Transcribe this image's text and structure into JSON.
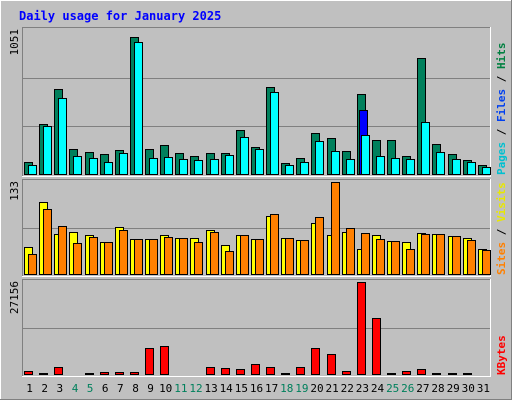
{
  "chart_data": {
    "type": "bar",
    "title": "Daily usage for January 2025",
    "categories": [
      "1",
      "2",
      "3",
      "4",
      "5",
      "6",
      "7",
      "8",
      "9",
      "10",
      "11",
      "12",
      "13",
      "14",
      "15",
      "16",
      "17",
      "18",
      "19",
      "20",
      "21",
      "22",
      "23",
      "24",
      "25",
      "26",
      "27",
      "28",
      "29",
      "30",
      "31"
    ],
    "weekend_days": [
      "4",
      "5",
      "11",
      "12",
      "18",
      "19",
      "25",
      "26"
    ],
    "panels": [
      {
        "id": "hits",
        "ylabel_parts": [
          {
            "text": "Pages",
            "color": "#00c0d0"
          },
          {
            "text": " / ",
            "color": "#000000"
          },
          {
            "text": "Files",
            "color": "#0040f0"
          },
          {
            "text": " / ",
            "color": "#000000"
          },
          {
            "text": "Hits",
            "color": "#008040"
          }
        ],
        "ymax_label": "1051",
        "ymax": 1051,
        "series": [
          {
            "name": "Hits",
            "color": "#00805c",
            "values": [
              90,
              370,
              620,
              185,
              165,
              150,
              180,
              995,
              185,
              215,
              155,
              140,
              160,
              155,
              325,
              200,
              635,
              85,
              125,
              305,
              265,
              170,
              585,
              250,
              255,
              135,
              840,
              225,
              150,
              105,
              70
            ]
          },
          {
            "name": "Files",
            "color": "#0000ff",
            "values": [
              0,
              0,
              0,
              0,
              0,
              0,
              0,
              0,
              0,
              0,
              0,
              0,
              0,
              0,
              0,
              0,
              0,
              0,
              0,
              0,
              0,
              0,
              465,
              0,
              0,
              0,
              0,
              0,
              0,
              0,
              0
            ]
          },
          {
            "name": "Pages",
            "color": "#00ffff",
            "values": [
              75,
              350,
              555,
              140,
              125,
              95,
              160,
              960,
              120,
              130,
              115,
              105,
              115,
              145,
              275,
              185,
              600,
              75,
              90,
              245,
              170,
              115,
              285,
              135,
              125,
              115,
              385,
              165,
              115,
              95,
              60
            ]
          }
        ]
      },
      {
        "id": "visits",
        "ylabel_parts": [
          {
            "text": "Sites",
            "color": "#ff8000"
          },
          {
            "text": " / ",
            "color": "#000000"
          },
          {
            "text": "Visits",
            "color": "#e8e800"
          }
        ],
        "ymax_label": "133",
        "ymax": 133,
        "series": [
          {
            "name": "Visits",
            "color": "#ffff00",
            "values": [
              40,
              103,
              58,
              61,
              57,
              47,
              68,
              51,
              51,
              57,
              53,
              52,
              64,
              43,
              57,
              51,
              83,
              52,
              49,
              73,
              57,
              61,
              37,
              57,
              48,
              47,
              59,
              58,
              55,
              52,
              37
            ]
          },
          {
            "name": "Sites",
            "color": "#ff8000",
            "values": [
              30,
              94,
              70,
              45,
              54,
              46,
              63,
              51,
              51,
              54,
              52,
              46,
              61,
              34,
              57,
              51,
              86,
              52,
              49,
              82,
              131,
              67,
              59,
              51,
              48,
              37,
              58,
              58,
              55,
              50,
              35
            ]
          }
        ]
      },
      {
        "id": "kbytes",
        "ylabel_parts": [
          {
            "text": "KBytes",
            "color": "#ff0000"
          }
        ],
        "ymax_label": "27156",
        "ymax": 27156,
        "series": [
          {
            "name": "KBytes",
            "color": "#ff0000",
            "values": [
              1100,
              700,
              2400,
              400,
              500,
              1000,
              800,
              800,
              7700,
              8300,
              400,
              200,
              2300,
              2000,
              1800,
              3300,
              2200,
              500,
              2400,
              7700,
              6000,
              1200,
              26800,
              16500,
              700,
              1200,
              1800,
              500,
              500,
              600,
              400
            ]
          }
        ]
      }
    ]
  }
}
